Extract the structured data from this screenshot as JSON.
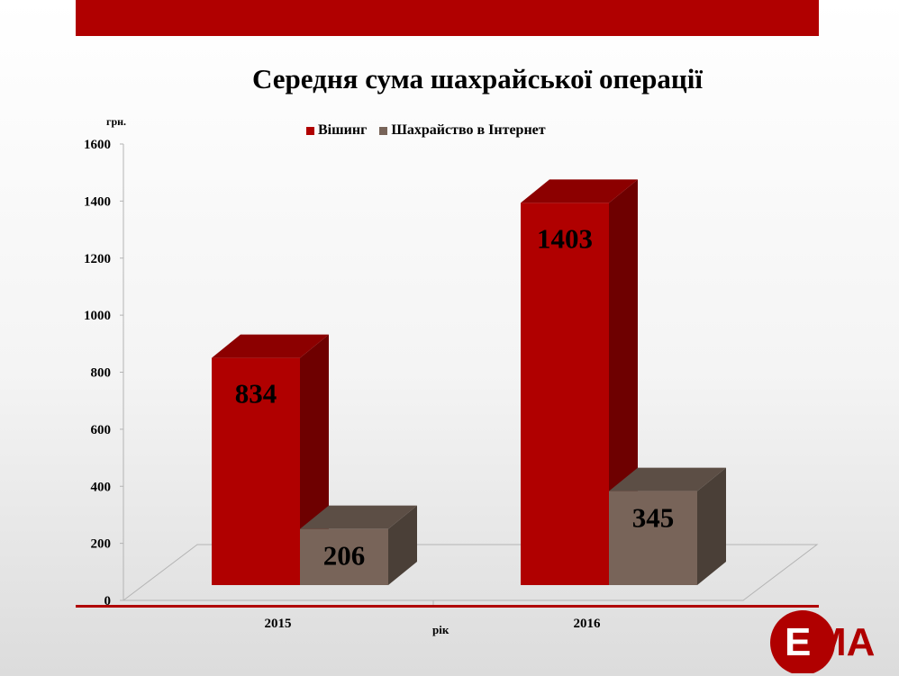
{
  "chart_data": {
    "type": "bar",
    "title": "Середня сума шахрайської операції",
    "ylabel": "грн.",
    "xlabel": "рік",
    "categories": [
      "2015",
      "2016"
    ],
    "series": [
      {
        "name": "Вішинг",
        "values": [
          834,
          1403
        ],
        "color": "#b00000",
        "side": "#6e0000",
        "top": "#8c0000"
      },
      {
        "name": "Шахрайство в Інтернет",
        "values": [
          206,
          345
        ],
        "color": "#786459",
        "side": "#4a3f37",
        "top": "#5c4e45"
      }
    ],
    "ylim": [
      0,
      1600
    ],
    "yticks": [
      "0",
      "200",
      "400",
      "600",
      "800",
      "1000",
      "1200",
      "1400",
      "1600"
    ],
    "legend_position": "top",
    "grid": false
  },
  "logo": {
    "text": "ЕМА",
    "color": "#b00000"
  },
  "colors": {
    "accent": "#b00000"
  }
}
